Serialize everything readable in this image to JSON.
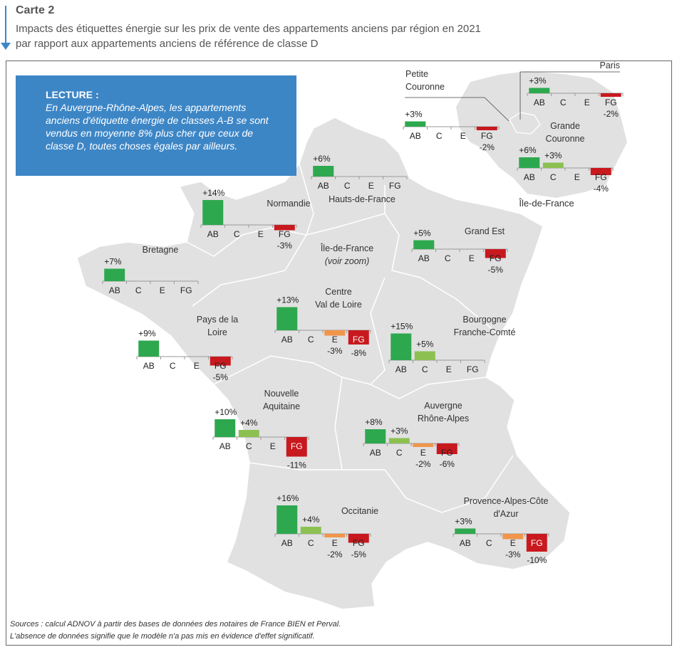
{
  "header": {
    "title": "Carte 2",
    "subtitle_line1": "Impacts des étiquettes énergie sur les prix de vente des appartements anciens par région en 2021",
    "subtitle_line2": "par rapport aux appartements anciens de référence de classe D"
  },
  "lecture": {
    "heading": "LECTURE :",
    "text": "En Auvergne-Rhône-Alpes, les appartements anciens d'étiquette énergie de classes A-B se sont vendus en moyenne 8% plus cher que ceux de classe D, toutes choses égales par ailleurs."
  },
  "map_labels": {
    "idf_line1": "Île-de-France",
    "idf_line2": "(voir zoom)",
    "idf_zoom_title": "Île-de-France"
  },
  "colors": {
    "AB": "#2ea84f",
    "C": "#8cc152",
    "E": "#f0954a",
    "FG": "#c8191e",
    "map": "#e1e1e1",
    "lecture_bg": "#3d86c6"
  },
  "chart_data": {
    "type": "bar",
    "categories": [
      "AB",
      "C",
      "E",
      "FG"
    ],
    "unit": "%",
    "regions": [
      {
        "label": [
          "Hauts-de-France"
        ],
        "values": [
          6,
          null,
          null,
          null
        ]
      },
      {
        "label": [
          "Normandie"
        ],
        "values": [
          14,
          null,
          null,
          -3
        ]
      },
      {
        "label": [
          "Bretagne"
        ],
        "values": [
          7,
          null,
          null,
          null
        ]
      },
      {
        "label": [
          "Grand Est"
        ],
        "values": [
          5,
          null,
          null,
          -5
        ]
      },
      {
        "label": [
          "Centre",
          "Val de Loire"
        ],
        "values": [
          13,
          null,
          -3,
          -8
        ]
      },
      {
        "label": [
          "Pays de la",
          "Loire"
        ],
        "values": [
          9,
          null,
          null,
          -5
        ]
      },
      {
        "label": [
          "Bourgogne",
          "Franche-Comté"
        ],
        "values": [
          15,
          5,
          null,
          null
        ]
      },
      {
        "label": [
          "Nouvelle",
          "Aquitaine"
        ],
        "values": [
          10,
          4,
          null,
          -11
        ]
      },
      {
        "label": [
          "Auvergne",
          "Rhône-Alpes"
        ],
        "values": [
          8,
          3,
          -2,
          -6
        ]
      },
      {
        "label": [
          "Occitanie"
        ],
        "values": [
          16,
          4,
          -2,
          -5
        ]
      },
      {
        "label": [
          "Provence-Alpes-Côte",
          "d'Azur"
        ],
        "values": [
          3,
          null,
          -3,
          -10
        ]
      },
      {
        "label": [
          "Petite",
          "Couronne"
        ],
        "values": [
          3,
          null,
          null,
          -2
        ]
      },
      {
        "label": [
          "Paris"
        ],
        "values": [
          3,
          null,
          null,
          -2
        ]
      },
      {
        "label": [
          "Grande",
          "Couronne"
        ],
        "values": [
          6,
          3,
          null,
          -4
        ]
      }
    ]
  },
  "sources": {
    "line1": "Sources : calcul ADNOV à partir des bases de données des notaires de France BIEN et Perval.",
    "line2": "L'absence de données signifie que le modèle n'a pas mis en évidence d'effet significatif."
  }
}
